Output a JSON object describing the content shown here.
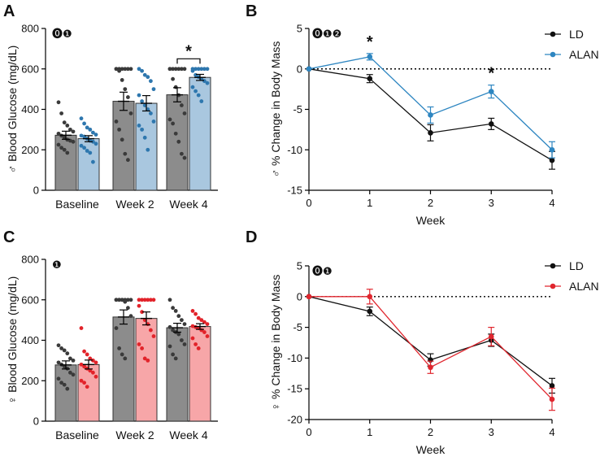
{
  "chart_data": [
    {
      "panel": "A",
      "type": "bar",
      "ylabel": "♂ Blood Glucose (mg/dL)",
      "ylim": [
        0,
        800
      ],
      "yticks": [
        "0",
        "200",
        "400",
        "600",
        "800"
      ],
      "categories": [
        "Baseline",
        "Week 2",
        "Week 4"
      ],
      "stats_markers": "⓿❶",
      "series": [
        {
          "name": "LD",
          "color": "#8c8c8c",
          "dot_color": "#3a3a3a",
          "means": [
            272,
            440,
            472
          ],
          "sem": [
            20,
            45,
            35
          ],
          "points": [
            [
              435,
              380,
              335,
              320,
              300,
              290,
              280,
              270,
              260,
              250,
              245,
              240,
              225,
              210,
              200,
              185
            ],
            [
              600,
              600,
              600,
              600,
              600,
              600,
              600,
              590,
              545,
              500,
              460,
              380,
              340,
              300,
              250,
              180,
              150
            ],
            [
              600,
              600,
              600,
              600,
              600,
              600,
              600,
              550,
              510,
              470,
              420,
              380,
              350,
              330,
              280,
              240,
              180,
              160
            ]
          ]
        },
        {
          "name": "ALAN",
          "color": "#a9c7df",
          "dot_color": "#2e77ae",
          "means": [
            255,
            430,
            558
          ],
          "sem": [
            15,
            38,
            15
          ],
          "points": [
            [
              355,
              330,
              310,
              300,
              285,
              275,
              270,
              265,
              255,
              245,
              240,
              230,
              220,
              210,
              195,
              185,
              140
            ],
            [
              600,
              590,
              570,
              560,
              540,
              500,
              470,
              440,
              420,
              400,
              380,
              340,
              320,
              300,
              260,
              200
            ],
            [
              600,
              600,
              600,
              600,
              600,
              600,
              590,
              570,
              560,
              550,
              540,
              530,
              510,
              490,
              470,
              440
            ]
          ]
        }
      ],
      "significance": [
        {
          "label": "*",
          "category": "Week 4"
        }
      ]
    },
    {
      "panel": "B",
      "type": "line",
      "ylabel": "♂ % Change in Body Mass",
      "xlabel": "Week",
      "x": [
        0,
        1,
        2,
        3,
        4
      ],
      "xticks": [
        "0",
        "1",
        "2",
        "3",
        "4"
      ],
      "ylim": [
        -15,
        5
      ],
      "yticks": [
        "-15",
        "-10",
        "-5",
        "0",
        "5"
      ],
      "stats_markers": "⓿❶❷",
      "series": [
        {
          "name": "LD",
          "color": "#111111",
          "values": [
            0,
            -1.2,
            -7.9,
            -6.8,
            -11.3
          ],
          "err": [
            0,
            0.5,
            1.0,
            0.7,
            1.1
          ]
        },
        {
          "name": "ALAN",
          "color": "#2e86c1",
          "values": [
            0,
            1.5,
            -5.7,
            -2.8,
            -10.0
          ],
          "err": [
            0,
            0.4,
            1.0,
            0.8,
            1.0
          ]
        }
      ],
      "significance": [
        {
          "label": "*",
          "x": 1
        },
        {
          "label": "*",
          "x": 3
        }
      ],
      "legend": "top-right"
    },
    {
      "panel": "C",
      "type": "bar",
      "ylabel": "♀ Blood Glucose (mg/dL)",
      "ylim": [
        0,
        800
      ],
      "yticks": [
        "0",
        "200",
        "400",
        "600",
        "800"
      ],
      "categories": [
        "Baseline",
        "Week 2",
        "Week 4"
      ],
      "stats_markers": "❶",
      "series": [
        {
          "name": "LD",
          "color": "#8c8c8c",
          "dot_color": "#3a3a3a",
          "means": [
            278,
            515,
            462
          ],
          "sem": [
            20,
            35,
            22
          ],
          "points": [
            [
              375,
              360,
              350,
              335,
              310,
              300,
              290,
              280,
              270,
              260,
              240,
              230,
              210,
              190,
              180,
              160
            ],
            [
              600,
              600,
              600,
              600,
              600,
              600,
              600,
              600,
              600,
              590,
              560,
              520,
              460,
              360,
              330,
              310
            ],
            [
              600,
              560,
              545,
              520,
              500,
              480,
              465,
              450,
              440,
              430,
              400,
              380,
              370,
              330,
              310
            ]
          ]
        },
        {
          "name": "ALAN",
          "color": "#f7a6a8",
          "dot_color": "#e2232a",
          "means": [
            280,
            508,
            468
          ],
          "sem": [
            22,
            32,
            14
          ],
          "points": [
            [
              460,
              345,
              330,
              310,
              300,
              290,
              280,
              270,
              260,
              250,
              240,
              220,
              200,
              190,
              170
            ],
            [
              600,
              600,
              600,
              600,
              600,
              600,
              570,
              540,
              500,
              480,
              450,
              420,
              380,
              360,
              310,
              300
            ],
            [
              545,
              530,
              510,
              500,
              490,
              480,
              470,
              465,
              460,
              450,
              440,
              420,
              410,
              380,
              360
            ]
          ]
        }
      ]
    },
    {
      "panel": "D",
      "type": "line",
      "ylabel": "♀ % Change in Body Mass",
      "xlabel": "Week",
      "x": [
        0,
        1,
        2,
        3,
        4
      ],
      "xticks": [
        "0",
        "1",
        "2",
        "3",
        "4"
      ],
      "ylim": [
        -20,
        5
      ],
      "yticks": [
        "-20",
        "-15",
        "-10",
        "-5",
        "0",
        "5"
      ],
      "stats_markers": "⓿❶",
      "series": [
        {
          "name": "LD",
          "color": "#111111",
          "values": [
            0,
            -2.4,
            -10.3,
            -7.1,
            -14.5
          ],
          "err": [
            0,
            0.7,
            1.0,
            1.0,
            1.2
          ]
        },
        {
          "name": "ALAN",
          "color": "#e0262e",
          "values": [
            0,
            0.0,
            -11.5,
            -6.5,
            -16.7
          ],
          "err": [
            0,
            1.2,
            1.0,
            1.5,
            1.8
          ]
        }
      ],
      "legend": "top-right"
    }
  ]
}
